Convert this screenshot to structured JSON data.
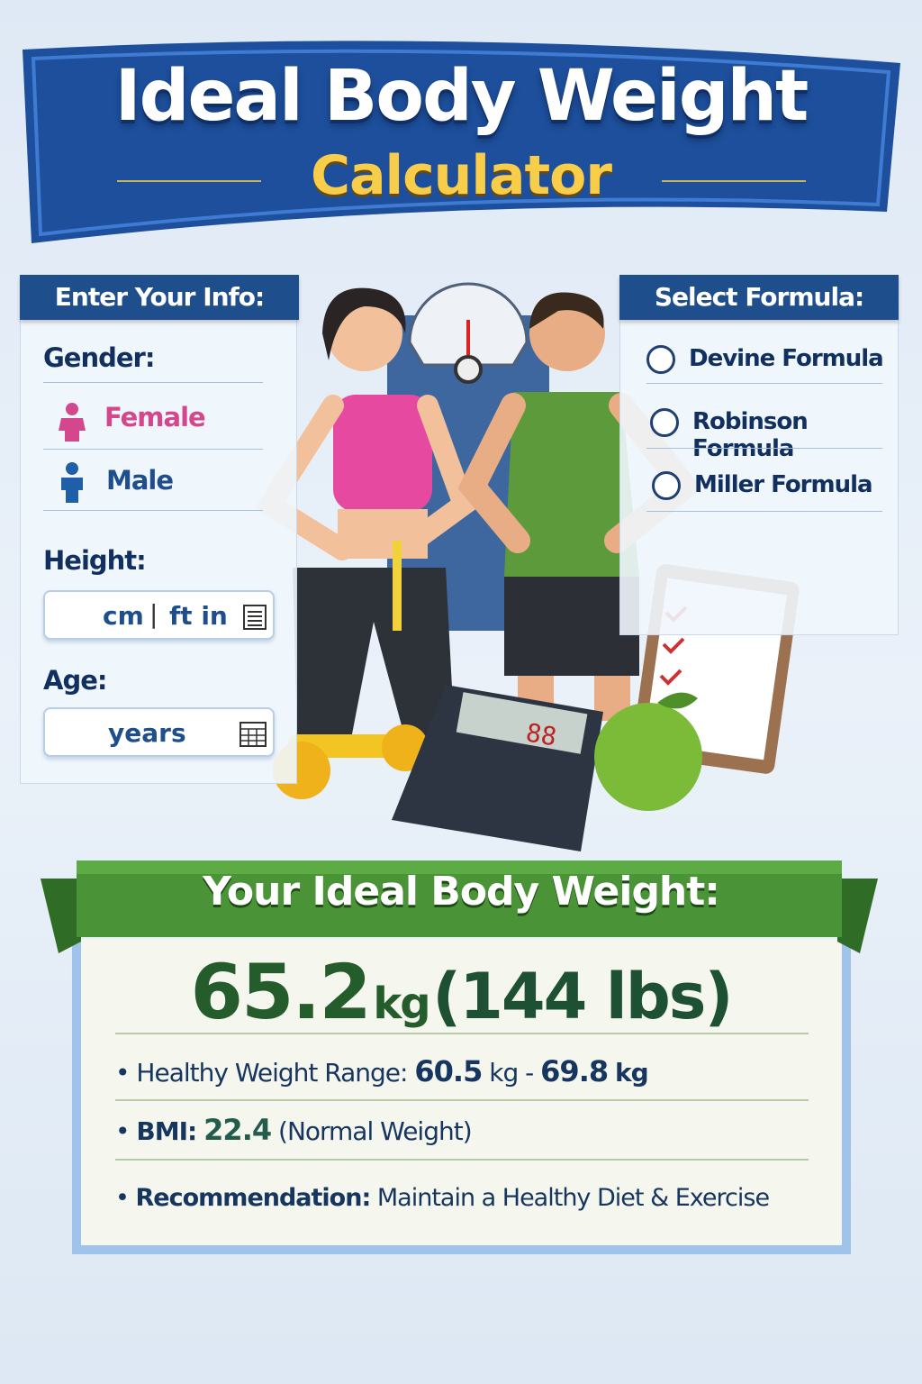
{
  "header": {
    "title": "Ideal Body Weight",
    "subtitle": "Calculator"
  },
  "input_panel": {
    "title": "Enter Your Info:",
    "gender_label": "Gender:",
    "gender_options": [
      {
        "label": "Female",
        "icon": "female-person-icon",
        "color": "#d4478c"
      },
      {
        "label": "Male",
        "icon": "male-person-icon",
        "color": "#1f5fa8"
      }
    ],
    "height_label": "Height:",
    "height_units": {
      "metric": "cm",
      "separator": "|",
      "imperial": "ft in"
    },
    "age_label": "Age:",
    "age_unit": "years"
  },
  "formula_panel": {
    "title": "Select Formula:",
    "options": [
      {
        "label": "Devine Formula",
        "selected": false
      },
      {
        "label": "Robinson Formula",
        "selected": false
      },
      {
        "label": "Miller Formula",
        "selected": false
      }
    ]
  },
  "result": {
    "title": "Your Ideal Body Weight:",
    "value": "65.2",
    "unit": "kg",
    "lbs": "(144 lbs)",
    "range_label": "Healthy Weight Range:",
    "range_low": "60.5",
    "range_high": "69.8",
    "range_unit": "kg",
    "range_sep": "-",
    "bmi_label": "BMI:",
    "bmi_value": "22.4",
    "bmi_category": "(Normal Weight)",
    "rec_label": "Recommendation:",
    "rec_text": "Maintain a Healthy Diet & Exercise"
  },
  "colors": {
    "primary": "#1f4e8c",
    "accent": "#f7cd4a",
    "success": "#3f8a2e",
    "female": "#d4478c",
    "male": "#1f5fa8"
  }
}
